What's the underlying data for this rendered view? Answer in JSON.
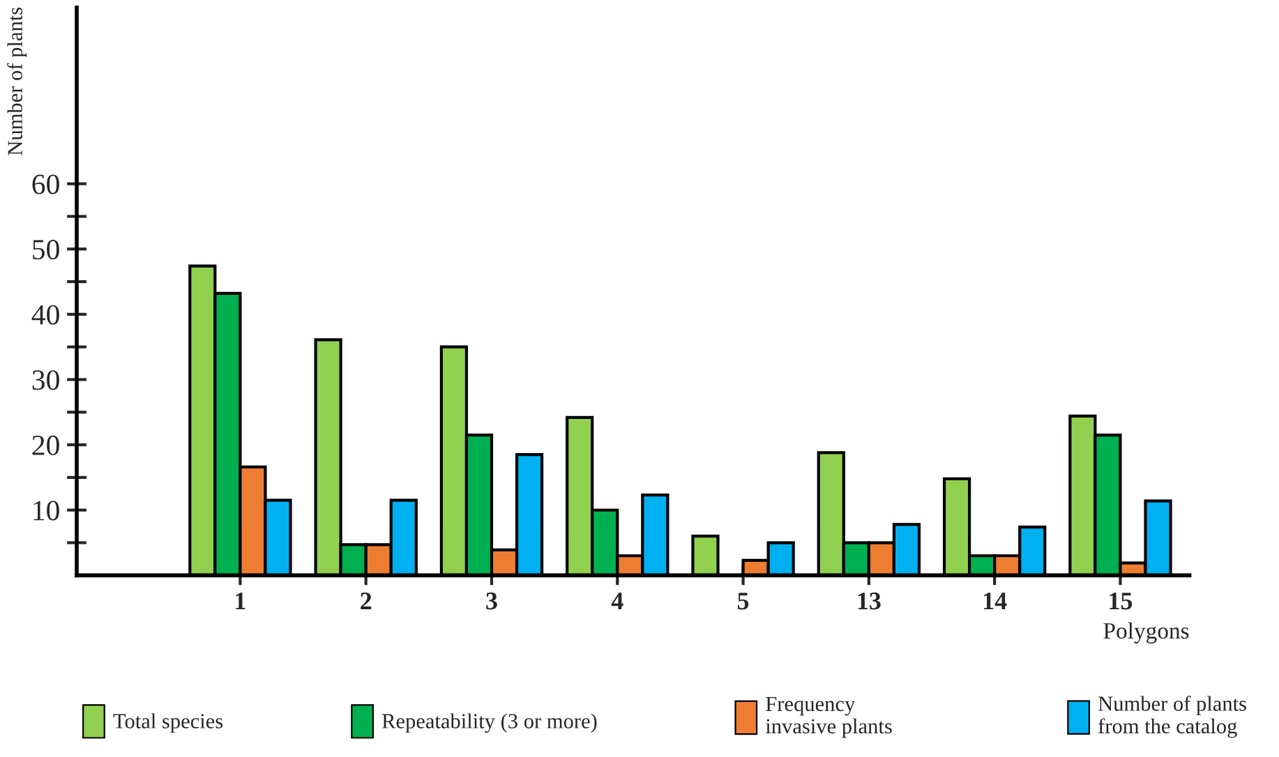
{
  "chart_data": {
    "type": "bar",
    "xlabel": "Polygons",
    "ylabel": "Number of plants",
    "categories": [
      "1",
      "2",
      "3",
      "4",
      "5",
      "13",
      "14",
      "15"
    ],
    "series": [
      {
        "name": "Total species",
        "color": "#92d050",
        "values": [
          47.4,
          36.1,
          35,
          24.2,
          6,
          18.8,
          14.8,
          24.4
        ]
      },
      {
        "name": "Repeatability (3 or more)",
        "color": "#00b050",
        "values": [
          43.2,
          4.7,
          21.5,
          10,
          null,
          5,
          3,
          21.5
        ]
      },
      {
        "name": "Frequency\ninvasive plants",
        "color": "#ed7d31",
        "values": [
          16.6,
          4.7,
          3.9,
          3,
          2.3,
          5,
          3,
          1.9
        ]
      },
      {
        "name": "Number of plants\nfrom the catalog",
        "color": "#00b0f0",
        "values": [
          11.5,
          11.5,
          18.5,
          12.3,
          5,
          7.8,
          7.4,
          11.4
        ]
      }
    ],
    "ylim": [
      0,
      87
    ],
    "yticks": [
      {
        "value": 5,
        "label": null
      },
      10,
      {
        "value": 15,
        "label": null
      },
      20,
      {
        "value": 25,
        "label": null
      },
      30,
      {
        "value": 35,
        "label": null
      },
      40,
      {
        "value": 45,
        "label": null
      },
      50,
      {
        "value": 55,
        "label": null
      },
      60
    ],
    "grid": false,
    "legend": "bottom"
  }
}
